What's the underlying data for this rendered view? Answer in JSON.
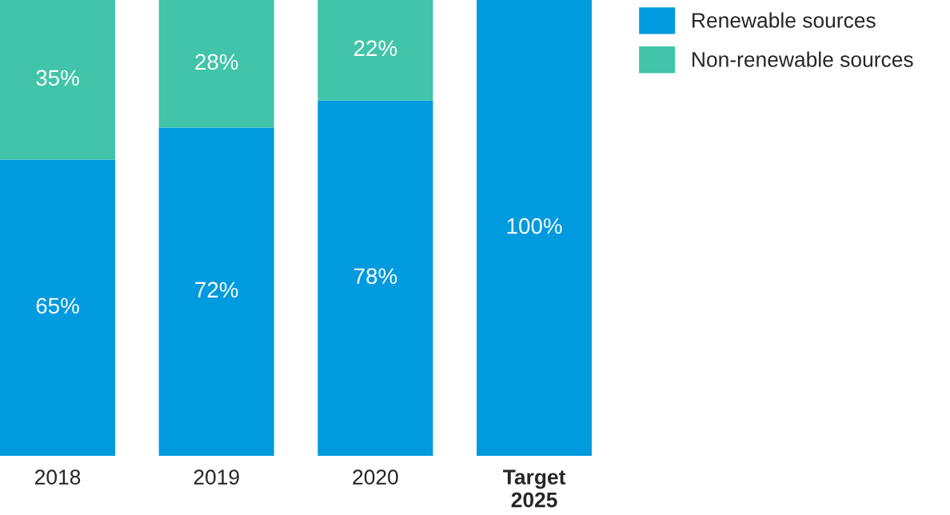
{
  "chart_data": {
    "type": "bar",
    "stacked": true,
    "categories": [
      "2018",
      "2019",
      "2020",
      "Target\n2025"
    ],
    "series": [
      {
        "name": "Renewable sources",
        "color": "#009ade",
        "values": [
          65,
          72,
          78,
          100
        ],
        "value_labels": [
          "65%",
          "72%",
          "78%",
          "100%"
        ]
      },
      {
        "name": "Non-renewable sources",
        "color": "#41c4a9",
        "values": [
          35,
          28,
          22,
          null
        ],
        "value_labels": [
          "35%",
          "28%",
          "22%",
          null
        ]
      }
    ],
    "legend": "top right"
  }
}
